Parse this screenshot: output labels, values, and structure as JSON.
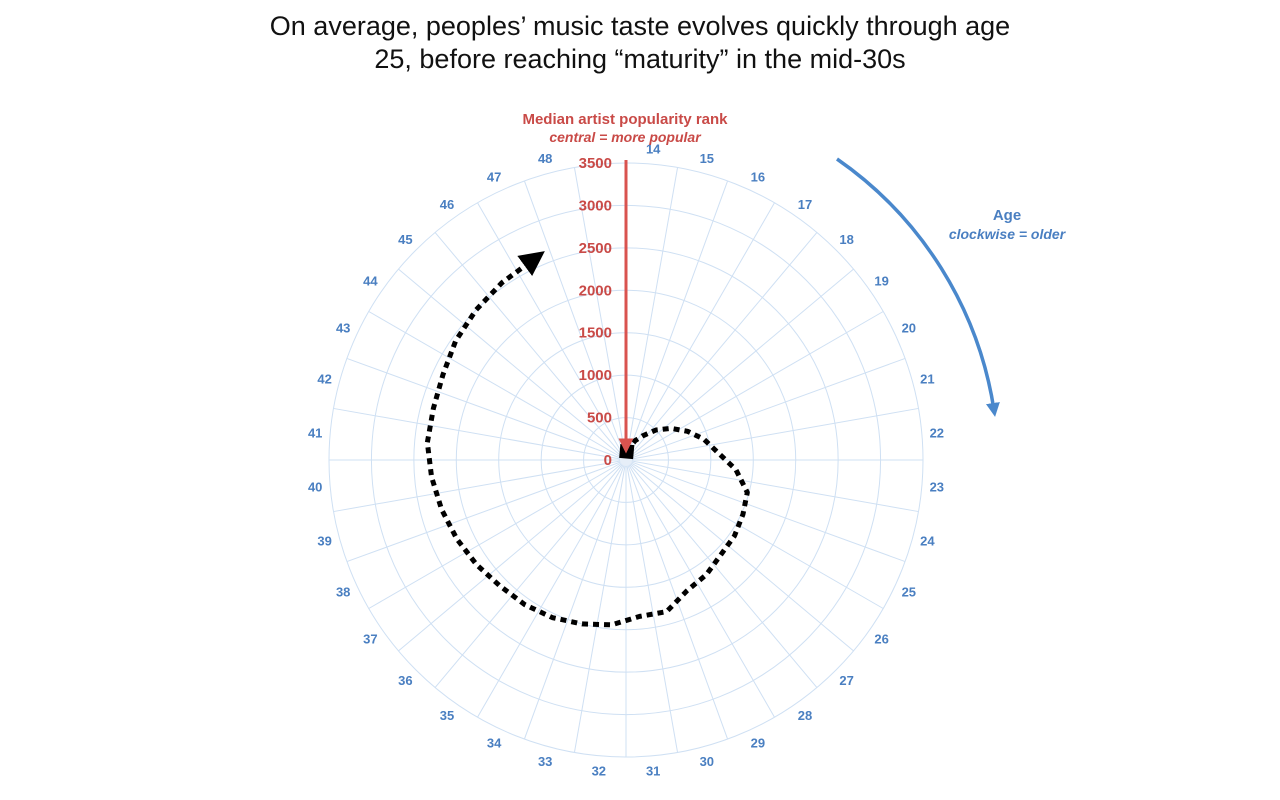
{
  "chart_data": {
    "type": "polar-line",
    "title_lines": [
      "On average, peoples’ music taste evolves quickly through age",
      "25, before reaching “maturity” in the mid-30s"
    ],
    "radial_axis": {
      "label": "Median artist popularity rank",
      "sublabel": "central = more popular",
      "ticks": [
        0,
        500,
        1000,
        1500,
        2000,
        2500,
        3000,
        3500
      ],
      "range": [
        0,
        3500
      ],
      "color": "#c94a47"
    },
    "angular_axis": {
      "label": "Age",
      "sublabel": "clockwise = older",
      "ages": [
        14,
        15,
        16,
        17,
        18,
        19,
        20,
        21,
        22,
        23,
        24,
        25,
        26,
        27,
        28,
        29,
        30,
        31,
        32,
        33,
        34,
        35,
        36,
        37,
        38,
        39,
        40,
        41,
        42,
        43,
        44,
        45,
        46,
        47,
        48
      ],
      "direction": "clockwise",
      "color": "#4a7fc1"
    },
    "grid": true,
    "series": [
      {
        "ages": [
          14,
          15,
          16,
          17,
          18,
          19,
          20,
          21,
          22,
          23,
          24,
          25,
          26,
          27,
          28,
          29,
          30,
          31,
          32,
          33,
          34,
          35,
          36,
          37,
          38,
          39,
          40,
          41,
          42,
          43,
          44,
          45,
          46,
          47
        ],
        "values": [
          100,
          150,
          250,
          350,
          500,
          650,
          800,
          950,
          1080,
          1300,
          1480,
          1520,
          1560,
          1580,
          1650,
          1700,
          1850,
          1850,
          1950,
          2000,
          2050,
          2080,
          2100,
          2150,
          2200,
          2250,
          2300,
          2350,
          2350,
          2380,
          2450,
          2500,
          2550,
          2600
        ],
        "color": "#000000"
      }
    ]
  }
}
